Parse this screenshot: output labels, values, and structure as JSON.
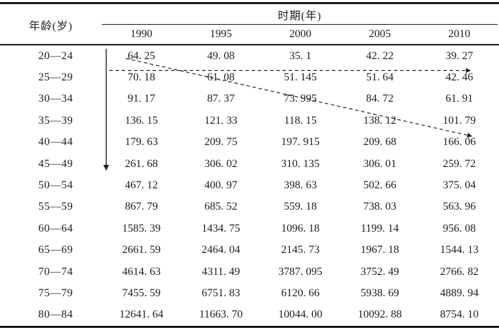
{
  "page": {
    "background": "#ffffff",
    "text_color": "#1c1c1c",
    "rule_color": "#161616"
  },
  "table": {
    "age_header": "年龄(岁)",
    "period_header": "时期(年)",
    "years": [
      "1990",
      "1995",
      "2000",
      "2005",
      "2010"
    ],
    "rows": [
      {
        "age": "20—24",
        "values": [
          "64. 25",
          "49. 08",
          "35. 1",
          "42. 22",
          "39. 27"
        ]
      },
      {
        "age": "25—29",
        "values": [
          "70. 18",
          "61. 08",
          "51. 145",
          "51. 64",
          "42. 46"
        ]
      },
      {
        "age": "30—34",
        "values": [
          "91. 17",
          "87. 37",
          "73. 995",
          "84. 72",
          "61. 91"
        ]
      },
      {
        "age": "35—39",
        "values": [
          "136. 15",
          "121. 33",
          "118. 15",
          "138. 12",
          "101. 79"
        ]
      },
      {
        "age": "40—44",
        "values": [
          "179. 63",
          "209. 75",
          "197. 915",
          "209. 68",
          "166. 06"
        ]
      },
      {
        "age": "45—49",
        "values": [
          "261. 68",
          "306. 02",
          "310. 135",
          "306. 01",
          "259. 72"
        ]
      },
      {
        "age": "50—54",
        "values": [
          "467. 12",
          "400. 97",
          "398. 63",
          "502. 66",
          "375. 04"
        ]
      },
      {
        "age": "55—59",
        "values": [
          "867. 79",
          "685. 52",
          "559. 18",
          "738. 03",
          "563. 96"
        ]
      },
      {
        "age": "60—64",
        "values": [
          "1585. 39",
          "1434. 75",
          "1096. 18",
          "1199. 14",
          "956. 08"
        ]
      },
      {
        "age": "65—69",
        "values": [
          "2661. 59",
          "2464. 04",
          "2145. 73",
          "1967. 18",
          "1544. 13"
        ]
      },
      {
        "age": "70—74",
        "values": [
          "4614. 63",
          "4311. 49",
          "3787. 095",
          "3752. 49",
          "2766. 82"
        ]
      },
      {
        "age": "75—79",
        "values": [
          "7455. 59",
          "6751. 83",
          "6120. 66",
          "5938. 69",
          "4889. 94"
        ]
      },
      {
        "age": "80—84",
        "values": [
          "12641. 64",
          "11663. 70",
          "10044. 00",
          "10092. 88",
          "8754. 10"
        ]
      }
    ]
  },
  "annotations": {
    "arrows": [
      {
        "name": "age-direction-arrow",
        "style": "solid",
        "orientation": "vertical-down"
      },
      {
        "name": "period-direction-arrow",
        "style": "dashed",
        "orientation": "horizontal-right"
      },
      {
        "name": "cohort-direction-arrow",
        "style": "dashed",
        "orientation": "diagonal-down-right"
      }
    ]
  },
  "chart_data": {
    "type": "table",
    "title": "",
    "row_dimension": "年龄(岁)",
    "column_dimension": "时期(年)",
    "columns": [
      1990,
      1995,
      2000,
      2005,
      2010
    ],
    "age_groups": [
      "20—24",
      "25—29",
      "30—34",
      "35—39",
      "40—44",
      "45—49",
      "50—54",
      "55—59",
      "60—64",
      "65—69",
      "70—74",
      "75—79",
      "80—84"
    ],
    "values": [
      [
        64.25,
        49.08,
        35.1,
        42.22,
        39.27
      ],
      [
        70.18,
        61.08,
        51.145,
        51.64,
        42.46
      ],
      [
        91.17,
        87.37,
        73.995,
        84.72,
        61.91
      ],
      [
        136.15,
        121.33,
        118.15,
        138.12,
        101.79
      ],
      [
        179.63,
        209.75,
        197.915,
        209.68,
        166.06
      ],
      [
        261.68,
        306.02,
        310.135,
        306.01,
        259.72
      ],
      [
        467.12,
        400.97,
        398.63,
        502.66,
        375.04
      ],
      [
        867.79,
        685.52,
        559.18,
        738.03,
        563.96
      ],
      [
        1585.39,
        1434.75,
        1096.18,
        1199.14,
        956.08
      ],
      [
        2661.59,
        2464.04,
        2145.73,
        1967.18,
        1544.13
      ],
      [
        4614.63,
        4311.49,
        3787.095,
        3752.49,
        2766.82
      ],
      [
        7455.59,
        6751.83,
        6120.66,
        5938.69,
        4889.94
      ],
      [
        12641.64,
        11663.7,
        10044.0,
        10092.88,
        8754.1
      ]
    ]
  }
}
